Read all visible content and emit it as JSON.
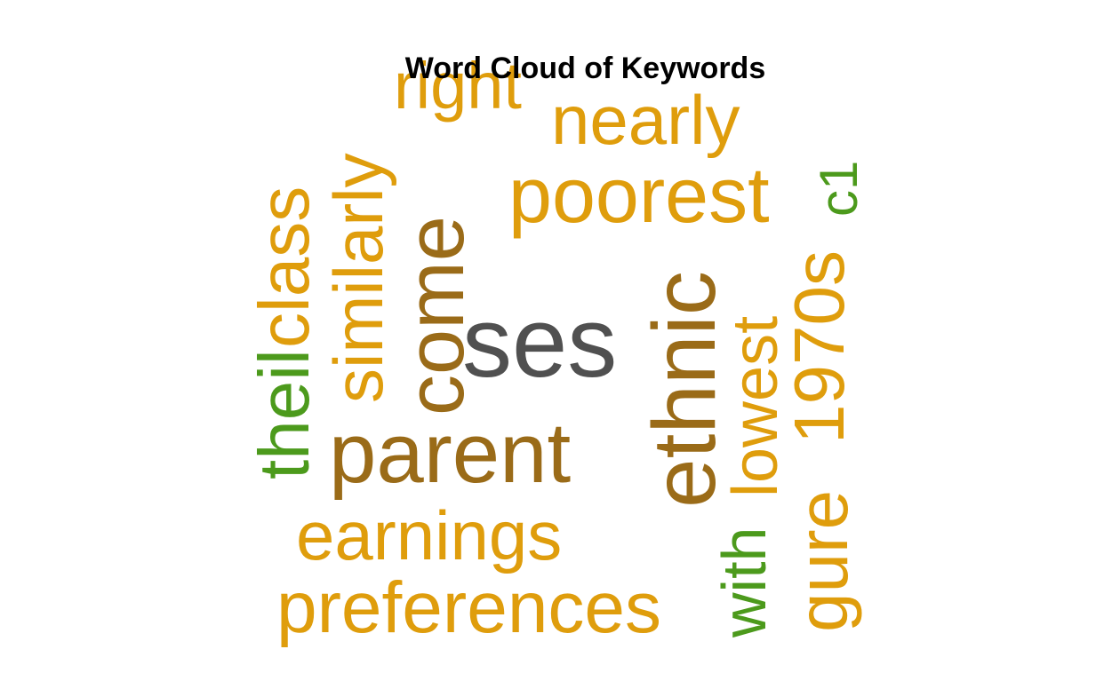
{
  "chart_data": {
    "type": "wordcloud",
    "title": "Word Cloud of Keywords",
    "colors": {
      "gray": "#505050",
      "brown": "#9a6b18",
      "gold": "#df9d0c",
      "green": "#4c9a1c"
    },
    "words": [
      {
        "text": "ses",
        "color": "gray",
        "rotate": 0
      },
      {
        "text": "come",
        "color": "brown",
        "rotate": -90
      },
      {
        "text": "ethnic",
        "color": "brown",
        "rotate": -90
      },
      {
        "text": "parent",
        "color": "brown",
        "rotate": 0
      },
      {
        "text": "poorest",
        "color": "gold",
        "rotate": 0
      },
      {
        "text": "preferences",
        "color": "gold",
        "rotate": 0
      },
      {
        "text": "earnings",
        "color": "gold",
        "rotate": 0
      },
      {
        "text": "nearly",
        "color": "gold",
        "rotate": 0
      },
      {
        "text": "right",
        "color": "gold",
        "rotate": 0
      },
      {
        "text": "similarly",
        "color": "gold",
        "rotate": -90
      },
      {
        "text": "class",
        "color": "gold",
        "rotate": -90
      },
      {
        "text": "theil",
        "color": "green",
        "rotate": -90
      },
      {
        "text": "lowest",
        "color": "gold",
        "rotate": -90
      },
      {
        "text": "1970s",
        "color": "gold",
        "rotate": -90
      },
      {
        "text": "gure",
        "color": "gold",
        "rotate": -90
      },
      {
        "text": "with",
        "color": "green",
        "rotate": -90
      },
      {
        "text": "c1",
        "color": "green",
        "rotate": -90
      }
    ]
  }
}
